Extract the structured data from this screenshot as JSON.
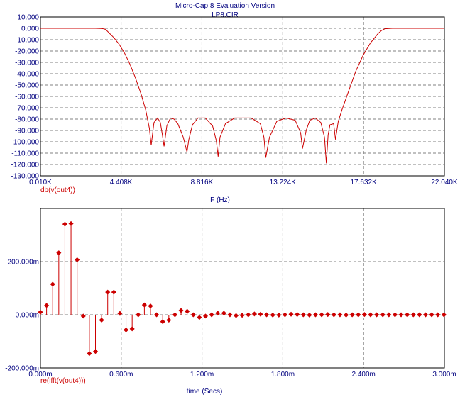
{
  "header": {
    "title": "Micro-Cap 8 Evaluation Version",
    "subtitle": "LP8.CIR"
  },
  "chart_data": [
    {
      "type": "line",
      "ylim": [
        -130,
        10
      ],
      "xlim": [
        10,
        22040
      ],
      "yticks": [
        10,
        0,
        -10,
        -20,
        -30,
        -40,
        -50,
        -60,
        -70,
        -80,
        -90,
        -100,
        -110,
        -120,
        -130
      ],
      "ytick_labels": [
        "10.000",
        "0.000",
        "-10.000",
        "-20.000",
        "-30.000",
        "-40.000",
        "-50.000",
        "-60.000",
        "-70.000",
        "-80.000",
        "-90.000",
        "-100.000",
        "-110.000",
        "-120.000",
        "-130.000"
      ],
      "xticks": [
        10,
        4408,
        8816,
        13224,
        17632,
        22040
      ],
      "xtick_labels": [
        "0.010K",
        "4.408K",
        "8.816K",
        "13.224K",
        "17.632K",
        "22.040K"
      ],
      "xlabel": "F (Hz)",
      "series": [
        {
          "name": "db(v(out4))",
          "color": "#cc0000",
          "x": [
            10,
            2000,
            3000,
            3300,
            3500,
            3600,
            3750,
            4000,
            4300,
            4600,
            4900,
            5200,
            5500,
            5750,
            5950,
            6050,
            6200,
            6400,
            6550,
            6650,
            6750,
            6900,
            7100,
            7300,
            7500,
            7800,
            8000,
            8100,
            8300,
            8600,
            9000,
            9400,
            9600,
            9700,
            9800,
            10100,
            10600,
            11000,
            11500,
            12000,
            12200,
            12300,
            12500,
            12900,
            13400,
            13900,
            14200,
            14300,
            14500,
            14700,
            15000,
            15300,
            15500,
            15600,
            15700,
            15800,
            16000,
            16100,
            16250,
            16450,
            16800,
            17200,
            17600,
            18000,
            18400,
            18600,
            18800,
            19200,
            20000,
            22040
          ],
          "y": [
            0,
            0,
            0,
            -0.1,
            -0.5,
            -1.5,
            -4,
            -8,
            -14,
            -22,
            -32,
            -44,
            -58,
            -72,
            -88,
            -103,
            -83,
            -79,
            -83,
            -93,
            -104,
            -86,
            -79,
            -80,
            -84,
            -96,
            -109,
            -98,
            -85,
            -79,
            -79,
            -86,
            -99,
            -113,
            -96,
            -84,
            -79,
            -79,
            -79,
            -84,
            -96,
            -114,
            -96,
            -82,
            -79,
            -81,
            -92,
            -106,
            -90,
            -81,
            -79,
            -83,
            -96,
            -119,
            -94,
            -85,
            -84,
            -98,
            -82,
            -72,
            -56,
            -38,
            -24,
            -13,
            -5,
            -2,
            -0.4,
            0,
            0,
            0
          ]
        }
      ]
    },
    {
      "type": "scatter",
      "ylim": [
        -200,
        400
      ],
      "xlim": [
        0,
        3
      ],
      "yticks": [
        200,
        0,
        -200
      ],
      "ytick_labels": [
        "200.000m",
        "0.000m",
        "-200.000m"
      ],
      "xticks": [
        0,
        0.6,
        1.2,
        1.8,
        2.4,
        3.0
      ],
      "xtick_labels": [
        "0.000m",
        "0.600m",
        "1.200m",
        "1.800m",
        "2.400m",
        "3.000m"
      ],
      "xlabel": "time (Secs)",
      "stem": true,
      "series": [
        {
          "name": "re(ifft(v(out4)))",
          "color": "#cc0000",
          "x_start": 0,
          "x_step": 0.0454,
          "values": [
            10,
            35,
            115,
            233,
            341,
            343,
            207,
            -5,
            -146,
            -138,
            -20,
            85,
            85,
            5,
            -57,
            -53,
            0,
            37,
            33,
            0,
            -26,
            -20,
            0,
            16,
            13,
            0,
            -10,
            -5,
            0,
            6,
            6,
            0,
            -3,
            -2,
            0,
            3,
            2,
            0,
            -1,
            -1,
            0,
            2,
            1,
            0,
            -1,
            0,
            0,
            1,
            0,
            0,
            -1,
            0,
            0,
            1,
            0,
            0,
            0,
            0,
            0,
            0,
            0,
            0,
            0,
            0,
            0,
            0,
            0
          ]
        }
      ]
    }
  ]
}
